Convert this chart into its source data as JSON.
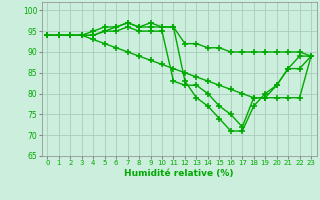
{
  "title": "",
  "xlabel": "Humidité relative (%)",
  "ylabel": "",
  "bg_color": "#cceedd",
  "grid_color": "#aaccbb",
  "line_color": "#00aa00",
  "marker": "+",
  "markersize": 4,
  "markeredgewidth": 1.2,
  "linewidth": 1.0,
  "xlim": [
    -0.5,
    23.5
  ],
  "ylim": [
    65,
    102
  ],
  "yticks": [
    65,
    70,
    75,
    80,
    85,
    90,
    95,
    100
  ],
  "xticks": [
    0,
    1,
    2,
    3,
    4,
    5,
    6,
    7,
    8,
    9,
    10,
    11,
    12,
    13,
    14,
    15,
    16,
    17,
    18,
    19,
    20,
    21,
    22,
    23
  ],
  "series": [
    [
      94,
      94,
      94,
      94,
      94,
      95,
      96,
      97,
      96,
      97,
      96,
      96,
      83,
      79,
      77,
      74,
      71,
      71,
      77,
      80,
      82,
      86,
      89,
      89
    ],
    [
      94,
      94,
      94,
      94,
      95,
      96,
      96,
      97,
      96,
      96,
      96,
      96,
      92,
      92,
      91,
      91,
      90,
      90,
      90,
      90,
      90,
      90,
      90,
      89
    ],
    [
      94,
      94,
      94,
      94,
      94,
      95,
      95,
      96,
      95,
      95,
      95,
      83,
      82,
      82,
      80,
      77,
      75,
      72,
      79,
      79,
      82,
      86,
      86,
      89
    ],
    [
      94,
      94,
      94,
      94,
      93,
      92,
      91,
      90,
      89,
      88,
      87,
      86,
      85,
      84,
      83,
      82,
      81,
      80,
      79,
      79,
      79,
      79,
      79,
      89
    ]
  ]
}
